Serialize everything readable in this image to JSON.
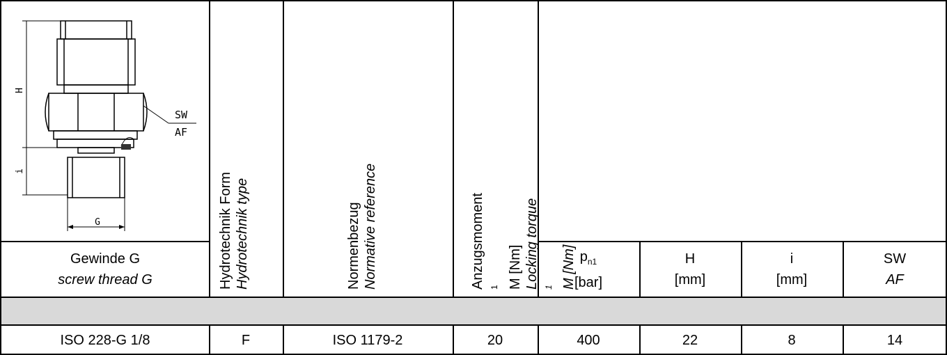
{
  "drawing": {
    "label_H": "H",
    "label_i": "i",
    "label_G": "G",
    "label_SW": "SW",
    "label_AF": "AF",
    "icon": "fitting-technical-drawing"
  },
  "headers": {
    "thread_de": "Gewinde G",
    "thread_en": "screw thread G",
    "form_de": "Hydrotechnik Form",
    "form_en": "Hydrotechnik type",
    "norm_de": "Normenbezug",
    "norm_en": "Normative reference",
    "torque_de_main": "Anzugsmoment",
    "torque_de_sup": "1",
    "torque_de_rest": " M [Nm]",
    "torque_en_main": "Locking torque",
    "torque_en_sup": "1",
    "torque_en_rest": " M [Nm]",
    "pn_main": "p",
    "pn_sub": "n1",
    "pn_unit": "[bar]",
    "h_main": "H",
    "h_unit": "[mm]",
    "i_main": "i",
    "i_unit": "[mm]",
    "sw_main": "SW",
    "sw_unit": "AF"
  },
  "section_band_color": "#d9d9d9",
  "rows": [
    {
      "thread": "ISO 228-G 1/8",
      "form": "F",
      "norm": "ISO 1179-2",
      "torque": "20",
      "pn1": "400",
      "h": "22",
      "i": "8",
      "sw": "14"
    }
  ]
}
